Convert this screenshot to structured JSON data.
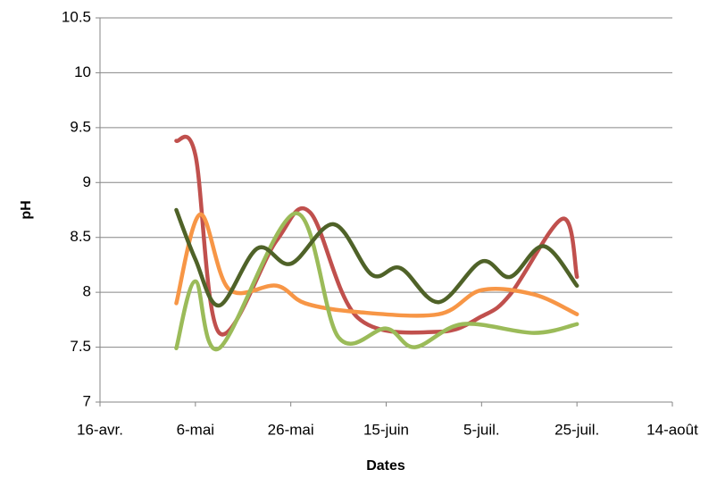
{
  "chart_data": {
    "type": "line",
    "x_label": "Dates",
    "y_label": "pH",
    "xlim": [
      106,
      226
    ],
    "xticks": [
      {
        "value": 106,
        "label": "16-avr."
      },
      {
        "value": 126,
        "label": "6-mai"
      },
      {
        "value": 146,
        "label": "26-mai"
      },
      {
        "value": 166,
        "label": "15-juin"
      },
      {
        "value": 186,
        "label": "5-juil."
      },
      {
        "value": 206,
        "label": "25-juil."
      },
      {
        "value": 226,
        "label": "14-août"
      }
    ],
    "ylim": [
      7,
      10.5
    ],
    "yticks": [
      7,
      7.5,
      8,
      8.5,
      9,
      9.5,
      10,
      10.5
    ],
    "grid": true,
    "smooth": true,
    "series": [
      {
        "color": "#c0504d",
        "x": [
          122,
          126,
          131,
          143,
          150,
          160,
          177,
          186,
          192,
          203,
          206
        ],
        "values": [
          9.38,
          9.25,
          7.63,
          8.47,
          8.73,
          7.77,
          7.64,
          7.78,
          7.98,
          8.67,
          8.14
        ]
      },
      {
        "color": "#f79646",
        "x": [
          122,
          127,
          133,
          143,
          149,
          160,
          177,
          186,
          197,
          206
        ],
        "values": [
          7.9,
          8.71,
          8.03,
          8.06,
          7.9,
          7.82,
          7.8,
          8.02,
          7.98,
          7.8
        ]
      },
      {
        "color": "#9bbb59",
        "x": [
          122,
          126,
          131,
          147,
          156,
          166,
          172,
          182,
          197,
          206
        ],
        "values": [
          7.49,
          8.1,
          7.49,
          8.72,
          7.59,
          7.67,
          7.5,
          7.71,
          7.63,
          7.71
        ]
      },
      {
        "color": "#4f6228",
        "x": [
          122,
          126,
          131,
          139,
          146,
          155,
          163,
          169,
          177,
          186,
          192,
          199,
          206
        ],
        "values": [
          8.75,
          8.3,
          7.88,
          8.4,
          8.26,
          8.62,
          8.16,
          8.22,
          7.91,
          8.28,
          8.14,
          8.42,
          8.06
        ]
      }
    ]
  }
}
